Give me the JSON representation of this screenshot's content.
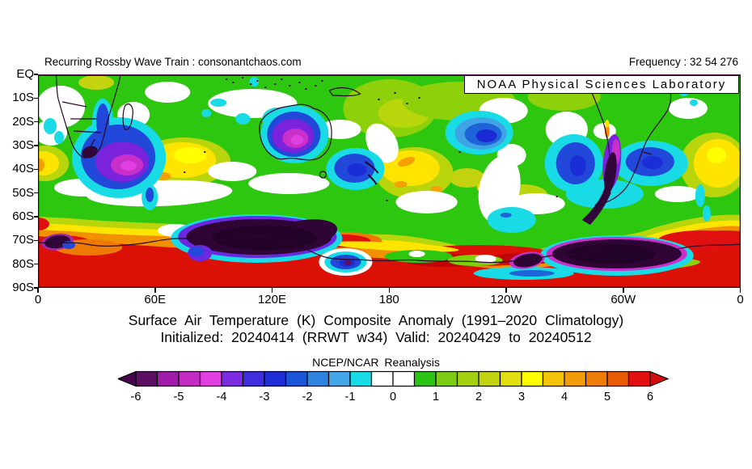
{
  "header": {
    "left": "Recurring Rossby Wave Train : consonantchaos.com",
    "right": "Frequency : 32 54 276"
  },
  "map": {
    "watermark": "NOAA Physical Sciences Laboratory",
    "y_axis": {
      "labels": [
        "EQ",
        "10S",
        "20S",
        "30S",
        "40S",
        "50S",
        "60S",
        "70S",
        "80S",
        "90S"
      ]
    },
    "x_axis": {
      "labels": [
        "0",
        "60E",
        "120E",
        "180",
        "120W",
        "60W",
        "0"
      ]
    }
  },
  "titles": {
    "line1": "Surface Air Temperature (K) Composite Anomaly (1991–2020 Climatology)",
    "line2": "Initialized: 20240414 (RRWT w34) Valid: 20240429 to 20240512",
    "dataset": "NCEP/NCAR Reanalysis"
  },
  "colorbar": {
    "tick_labels": [
      "-6",
      "-5",
      "-4",
      "-3",
      "-2",
      "-1",
      "0",
      "1",
      "2",
      "3",
      "4",
      "5",
      "6"
    ],
    "colors": [
      "#5c0f63",
      "#a11caa",
      "#c32cc3",
      "#e13fe1",
      "#7b2be0",
      "#3f2ddf",
      "#1f2fd8",
      "#1b55d8",
      "#2e82e0",
      "#43a6e6",
      "#18dbe6",
      "#ffffff",
      "#ffffff",
      "#2bc414",
      "#7ecb14",
      "#a3cf10",
      "#c4d310",
      "#e2dd0e",
      "#ffff00",
      "#f4c40a",
      "#f29c08",
      "#ee7d06",
      "#e95c05",
      "#e31010"
    ],
    "left_arrow_color": "#46064d",
    "right_arrow_color": "#d40b0b"
  }
}
